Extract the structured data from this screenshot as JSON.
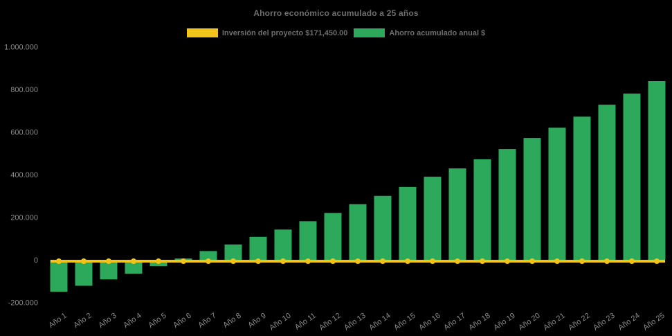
{
  "colors": {
    "background": "#000000",
    "title_text": "#6E6E6E",
    "legend_text": "#6E6E6E",
    "tick_text": "#8A8A8A",
    "investment_yellow": "#F0C419",
    "savings_green": "#2DA95C"
  },
  "chart_data": {
    "type": "bar",
    "title": "Ahorro económico acumulado a 25 años",
    "xlabel": "",
    "ylabel": "",
    "categories": [
      "Año 1",
      "Año 2",
      "Año 3",
      "Año 4",
      "Año 5",
      "Año 6",
      "Año 7",
      "Año 8",
      "Año 9",
      "Año 10",
      "Año 11",
      "Año 12",
      "Año 13",
      "Año 14",
      "Año 15",
      "Año 16",
      "Año 17",
      "Año 18",
      "Año 19",
      "Año 20",
      "Año 21",
      "Año 22",
      "Año 23",
      "Año 24",
      "Año 25"
    ],
    "series": [
      {
        "name": "Inversión del proyecto $171,450.00",
        "type": "line",
        "color": "#F0C419",
        "marker": "circle",
        "constant_value": 0
      },
      {
        "name": "Ahorro acumulado anual $",
        "type": "bar",
        "color": "#2DA95C",
        "values": [
          -150000,
          -122000,
          -92000,
          -65000,
          -30000,
          6000,
          41000,
          72000,
          108000,
          142000,
          181000,
          220000,
          261000,
          300000,
          342000,
          390000,
          429000,
          472000,
          520000,
          572000,
          620000,
          672000,
          728000,
          780000,
          839000
        ]
      }
    ],
    "ylim": [
      -200000,
      1000000
    ],
    "ytick_step": 200000,
    "ytick_labels": [
      "-200.000",
      "0",
      "200.000",
      "400.000",
      "600.000",
      "800.000",
      "1.000.000"
    ],
    "grid": false,
    "legend_position": "top",
    "background": "#000000"
  }
}
